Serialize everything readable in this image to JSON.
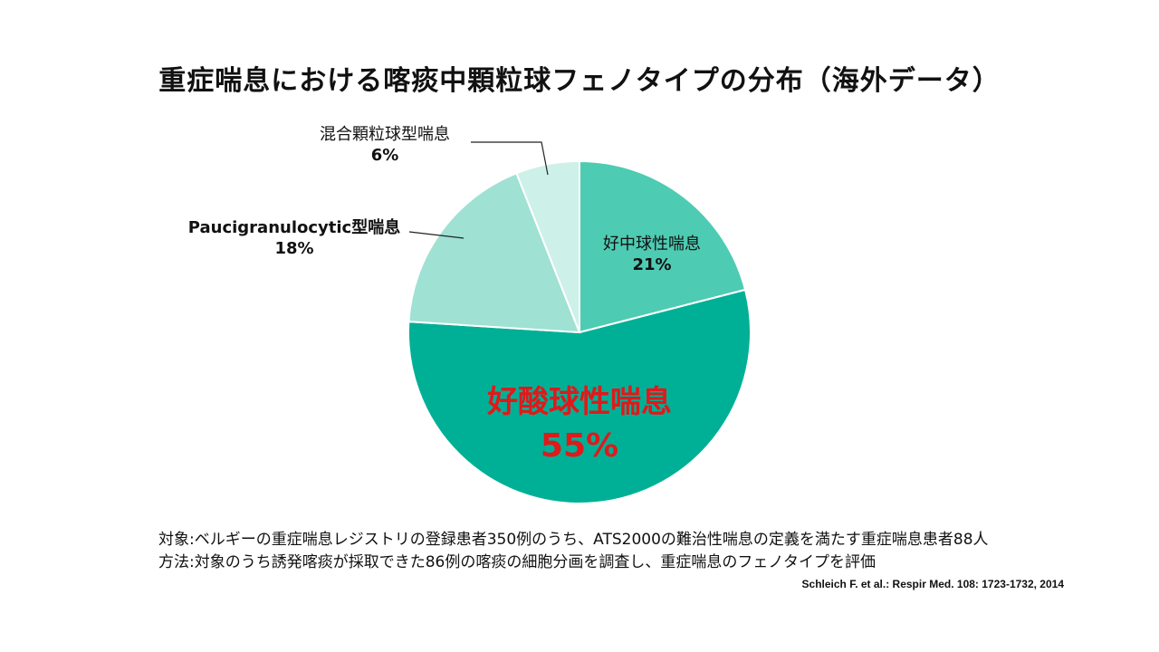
{
  "chart_data": {
    "type": "pie",
    "title": "重症喘息における喀痰中顆粒球フェノタイプの分布（海外データ）",
    "slices": [
      {
        "label": "好中球性喘息",
        "value": 21,
        "value_label": "21%",
        "color": "#4ecbb3"
      },
      {
        "label": "好酸球性喘息",
        "value": 55,
        "value_label": "55%",
        "color": "#00b096"
      },
      {
        "label": "Paucigranulocytic型喘息",
        "value": 18,
        "value_label": "18%",
        "color": "#9fe1d3"
      },
      {
        "label": "混合顆粒球型喘息",
        "value": 6,
        "value_label": "6%",
        "color": "#cdf0e8"
      }
    ],
    "start": "12 o'clock",
    "direction": "clockwise",
    "highlight_color": "#e0191b"
  },
  "notes": [
    "対象:ベルギーの重症喘息レジストリの登録患者350例のうち、ATS2000の難治性喘息の定義を満たす重症喘息患者88人",
    "方法:対象のうち誘発喀痰が採取できた86例の喀痰の細胞分画を調査し、重症喘息のフェノタイプを評価"
  ],
  "source": "Schleich F. et al.: Respir Med. 108: 1723-1732, 2014"
}
